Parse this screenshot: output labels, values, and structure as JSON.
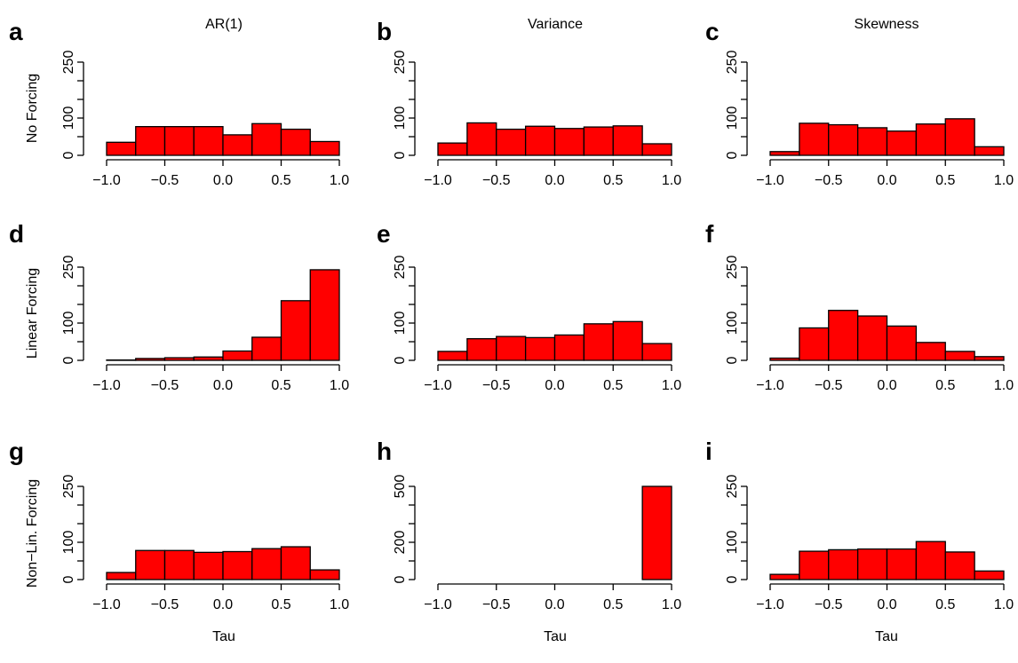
{
  "figure": {
    "column_titles": [
      "AR(1)",
      "Variance",
      "Skewness"
    ],
    "row_titles": [
      "No Forcing",
      "Linear Forcing",
      "Non−Lin. Forcing"
    ],
    "xlabel": "Tau",
    "bar_color": "#ff0000",
    "edge_color": "#000000"
  },
  "chart_data": [
    {
      "id": "a",
      "letter": "a",
      "type": "bar",
      "row": 0,
      "col": 0,
      "bin_edges": [
        -1.0,
        -0.75,
        -0.5,
        -0.25,
        0.0,
        0.25,
        0.5,
        0.75,
        1.0
      ],
      "values": [
        35,
        77,
        77,
        77,
        55,
        85,
        70,
        37
      ],
      "xlim": [
        -1.0,
        1.0
      ],
      "ylim": [
        0,
        250
      ],
      "yticks": [
        0,
        100,
        250
      ],
      "xticks": [
        "−1.0",
        "−0.5",
        "0.0",
        "0.5",
        "1.0"
      ]
    },
    {
      "id": "b",
      "letter": "b",
      "type": "bar",
      "row": 0,
      "col": 1,
      "bin_edges": [
        -1.0,
        -0.75,
        -0.5,
        -0.25,
        0.0,
        0.25,
        0.5,
        0.75,
        1.0
      ],
      "values": [
        33,
        87,
        70,
        78,
        72,
        76,
        79,
        31
      ],
      "xlim": [
        -1.0,
        1.0
      ],
      "ylim": [
        0,
        250
      ],
      "yticks": [
        0,
        100,
        250
      ],
      "xticks": [
        "−1.0",
        "−0.5",
        "0.0",
        "0.5",
        "1.0"
      ]
    },
    {
      "id": "c",
      "letter": "c",
      "type": "bar",
      "row": 0,
      "col": 2,
      "bin_edges": [
        -1.0,
        -0.75,
        -0.5,
        -0.25,
        0.0,
        0.25,
        0.5,
        0.75,
        1.0
      ],
      "values": [
        10,
        86,
        82,
        74,
        65,
        84,
        98,
        23
      ],
      "xlim": [
        -1.0,
        1.0
      ],
      "ylim": [
        0,
        250
      ],
      "yticks": [
        0,
        100,
        250
      ],
      "xticks": [
        "−1.0",
        "−0.5",
        "0.0",
        "0.5",
        "1.0"
      ]
    },
    {
      "id": "d",
      "letter": "d",
      "type": "bar",
      "row": 1,
      "col": 0,
      "bin_edges": [
        -1.0,
        -0.75,
        -0.5,
        -0.25,
        0.0,
        0.25,
        0.5,
        0.75,
        1.0
      ],
      "values": [
        1,
        5,
        7,
        9,
        25,
        62,
        160,
        243
      ],
      "xlim": [
        -1.0,
        1.0
      ],
      "ylim": [
        0,
        250
      ],
      "yticks": [
        0,
        100,
        250
      ],
      "xticks": [
        "−1.0",
        "−0.5",
        "0.0",
        "0.5",
        "1.0"
      ]
    },
    {
      "id": "e",
      "letter": "e",
      "type": "bar",
      "row": 1,
      "col": 1,
      "bin_edges": [
        -1.0,
        -0.75,
        -0.5,
        -0.25,
        0.0,
        0.25,
        0.5,
        0.75,
        1.0
      ],
      "values": [
        24,
        58,
        64,
        61,
        68,
        98,
        104,
        45
      ],
      "xlim": [
        -1.0,
        1.0
      ],
      "ylim": [
        0,
        250
      ],
      "yticks": [
        0,
        100,
        250
      ],
      "xticks": [
        "−1.0",
        "−0.5",
        "0.0",
        "0.5",
        "1.0"
      ]
    },
    {
      "id": "f",
      "letter": "f",
      "type": "bar",
      "row": 1,
      "col": 2,
      "bin_edges": [
        -1.0,
        -0.75,
        -0.5,
        -0.25,
        0.0,
        0.25,
        0.5,
        0.75,
        1.0
      ],
      "values": [
        6,
        87,
        134,
        119,
        92,
        48,
        24,
        10
      ],
      "xlim": [
        -1.0,
        1.0
      ],
      "ylim": [
        0,
        250
      ],
      "yticks": [
        0,
        100,
        250
      ],
      "xticks": [
        "−1.0",
        "−0.5",
        "0.0",
        "0.5",
        "1.0"
      ]
    },
    {
      "id": "g",
      "letter": "g",
      "type": "bar",
      "row": 2,
      "col": 0,
      "bin_edges": [
        -1.0,
        -0.75,
        -0.5,
        -0.25,
        0.0,
        0.25,
        0.5,
        0.75,
        1.0
      ],
      "values": [
        19,
        78,
        78,
        73,
        75,
        83,
        88,
        26
      ],
      "xlim": [
        -1.0,
        1.0
      ],
      "ylim": [
        0,
        250
      ],
      "yticks": [
        0,
        100,
        250
      ],
      "xticks": [
        "−1.0",
        "−0.5",
        "0.0",
        "0.5",
        "1.0"
      ]
    },
    {
      "id": "h",
      "letter": "h",
      "type": "bar",
      "row": 2,
      "col": 1,
      "bin_edges": [
        -1.0,
        -0.75,
        -0.5,
        -0.25,
        0.0,
        0.25,
        0.5,
        0.75,
        1.0
      ],
      "values": [
        0,
        0,
        0,
        0,
        0,
        0,
        0,
        500
      ],
      "xlim": [
        -1.0,
        1.0
      ],
      "ylim": [
        0,
        500
      ],
      "yticks": [
        0,
        200,
        500
      ],
      "xticks": [
        "−1.0",
        "−0.5",
        "0.0",
        "0.5",
        "1.0"
      ]
    },
    {
      "id": "i",
      "letter": "i",
      "type": "bar",
      "row": 2,
      "col": 2,
      "bin_edges": [
        -1.0,
        -0.75,
        -0.5,
        -0.25,
        0.0,
        0.25,
        0.5,
        0.75,
        1.0
      ],
      "values": [
        14,
        76,
        80,
        82,
        82,
        102,
        74,
        23
      ],
      "xlim": [
        -1.0,
        1.0
      ],
      "ylim": [
        0,
        250
      ],
      "yticks": [
        0,
        100,
        250
      ],
      "xticks": [
        "−1.0",
        "−0.5",
        "0.0",
        "0.5",
        "1.0"
      ]
    }
  ]
}
